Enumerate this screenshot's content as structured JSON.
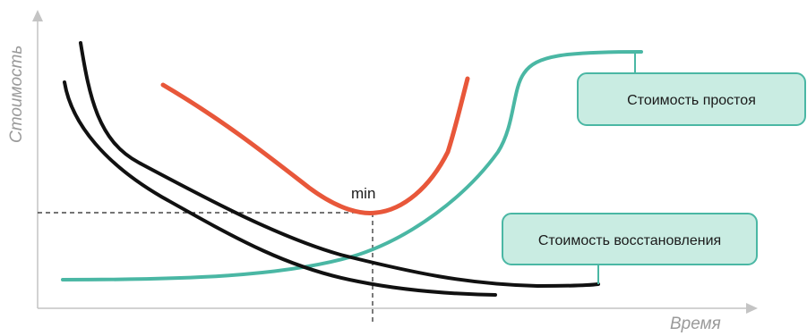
{
  "diagram": {
    "y_axis_label": "Стоимость",
    "x_axis_label": "Время",
    "min_label": "min",
    "downtime_cost_label": "Стоимость простоя",
    "recovery_cost_label": "Стоимость восстановления"
  },
  "colors": {
    "axis": "#c4c4c4",
    "total_cost_curve": "#e8573a",
    "downtime_cost_curve": "#4ab7a4",
    "recovery_cost_curves": "#111111",
    "callout_fill": "#c9ece2",
    "callout_stroke": "#4ab7a4",
    "guide_lines": "#222222"
  }
}
